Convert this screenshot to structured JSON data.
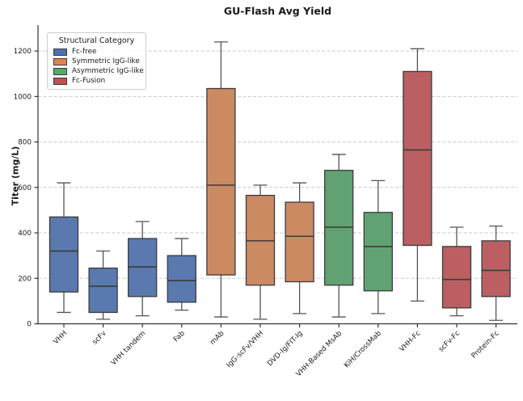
{
  "title": "GU-Flash Avg Yield",
  "chart_data": {
    "type": "box",
    "title": "GU-Flash Avg Yield",
    "xlabel": "",
    "ylabel": "Titer (mg/L)",
    "ylim": [
      0,
      1300
    ],
    "yticks": [
      0,
      200,
      400,
      600,
      800,
      1000,
      1200
    ],
    "grid": "horizontal dashed",
    "legend": {
      "title": "Structural Category",
      "position": "upper-left",
      "entries": [
        {
          "label": "Fc-free",
          "color": "#4C72B0"
        },
        {
          "label": "Symmetric IgG-like",
          "color": "#DD8452"
        },
        {
          "label": "Asymmetric IgG-like",
          "color": "#55A868"
        },
        {
          "label": "Fc-Fusion",
          "color": "#C44E52"
        }
      ]
    },
    "categories": [
      "VHH",
      "scFv",
      "VHH tandem",
      "Fab",
      "mAb",
      "IgG-scFv/VHH",
      "DVD-Ig/FIT-Ig",
      "VHH-Based MsAb",
      "KiH/CrossMab",
      "VHH-Fc",
      "scFv-Fc",
      "Protein-Fc"
    ],
    "boxes": [
      {
        "label": "VHH",
        "group": "Fc-free",
        "whisker_low": 50,
        "q1": 140,
        "median": 320,
        "q3": 470,
        "whisker_high": 620
      },
      {
        "label": "scFv",
        "group": "Fc-free",
        "whisker_low": 20,
        "q1": 50,
        "median": 165,
        "q3": 245,
        "whisker_high": 320
      },
      {
        "label": "VHH tandem",
        "group": "Fc-free",
        "whisker_low": 35,
        "q1": 120,
        "median": 250,
        "q3": 375,
        "whisker_high": 450
      },
      {
        "label": "Fab",
        "group": "Fc-free",
        "whisker_low": 60,
        "q1": 95,
        "median": 190,
        "q3": 300,
        "whisker_high": 375
      },
      {
        "label": "mAb",
        "group": "Symmetric IgG-like",
        "whisker_low": 30,
        "q1": 215,
        "median": 610,
        "q3": 1035,
        "whisker_high": 1240
      },
      {
        "label": "IgG-scFv/VHH",
        "group": "Symmetric IgG-like",
        "whisker_low": 20,
        "q1": 170,
        "median": 365,
        "q3": 565,
        "whisker_high": 610
      },
      {
        "label": "DVD-Ig/FIT-Ig",
        "group": "Symmetric IgG-like",
        "whisker_low": 45,
        "q1": 185,
        "median": 385,
        "q3": 535,
        "whisker_high": 620
      },
      {
        "label": "VHH-Based MsAb",
        "group": "Asymmetric IgG-like",
        "whisker_low": 30,
        "q1": 170,
        "median": 425,
        "q3": 675,
        "whisker_high": 745
      },
      {
        "label": "KiH/CrossMab",
        "group": "Asymmetric IgG-like",
        "whisker_low": 45,
        "q1": 145,
        "median": 340,
        "q3": 490,
        "whisker_high": 630
      },
      {
        "label": "VHH-Fc",
        "group": "Fc-Fusion",
        "whisker_low": 100,
        "q1": 345,
        "median": 765,
        "q3": 1110,
        "whisker_high": 1210
      },
      {
        "label": "scFv-Fc",
        "group": "Fc-Fusion",
        "whisker_low": 35,
        "q1": 70,
        "median": 195,
        "q3": 340,
        "whisker_high": 425
      },
      {
        "label": "Protein-Fc",
        "group": "Fc-Fusion",
        "whisker_low": 15,
        "q1": 120,
        "median": 235,
        "q3": 365,
        "whisker_high": 430
      }
    ],
    "palette": {
      "Fc-free": {
        "legend": "#4C72B0",
        "fill": "#5a79ae"
      },
      "Symmetric IgG-like": {
        "legend": "#DD8452",
        "fill": "#cc8a63"
      },
      "Asymmetric IgG-like": {
        "legend": "#55A868",
        "fill": "#60a272"
      },
      "Fc-Fusion": {
        "legend": "#C44E52",
        "fill": "#bb5f63"
      }
    },
    "style_colors": {
      "box_edge": "#3b3b3b",
      "whisker": "#555555",
      "grid": "#c9c9c9",
      "spine": "#333333",
      "text": "#1a1a1a"
    }
  }
}
